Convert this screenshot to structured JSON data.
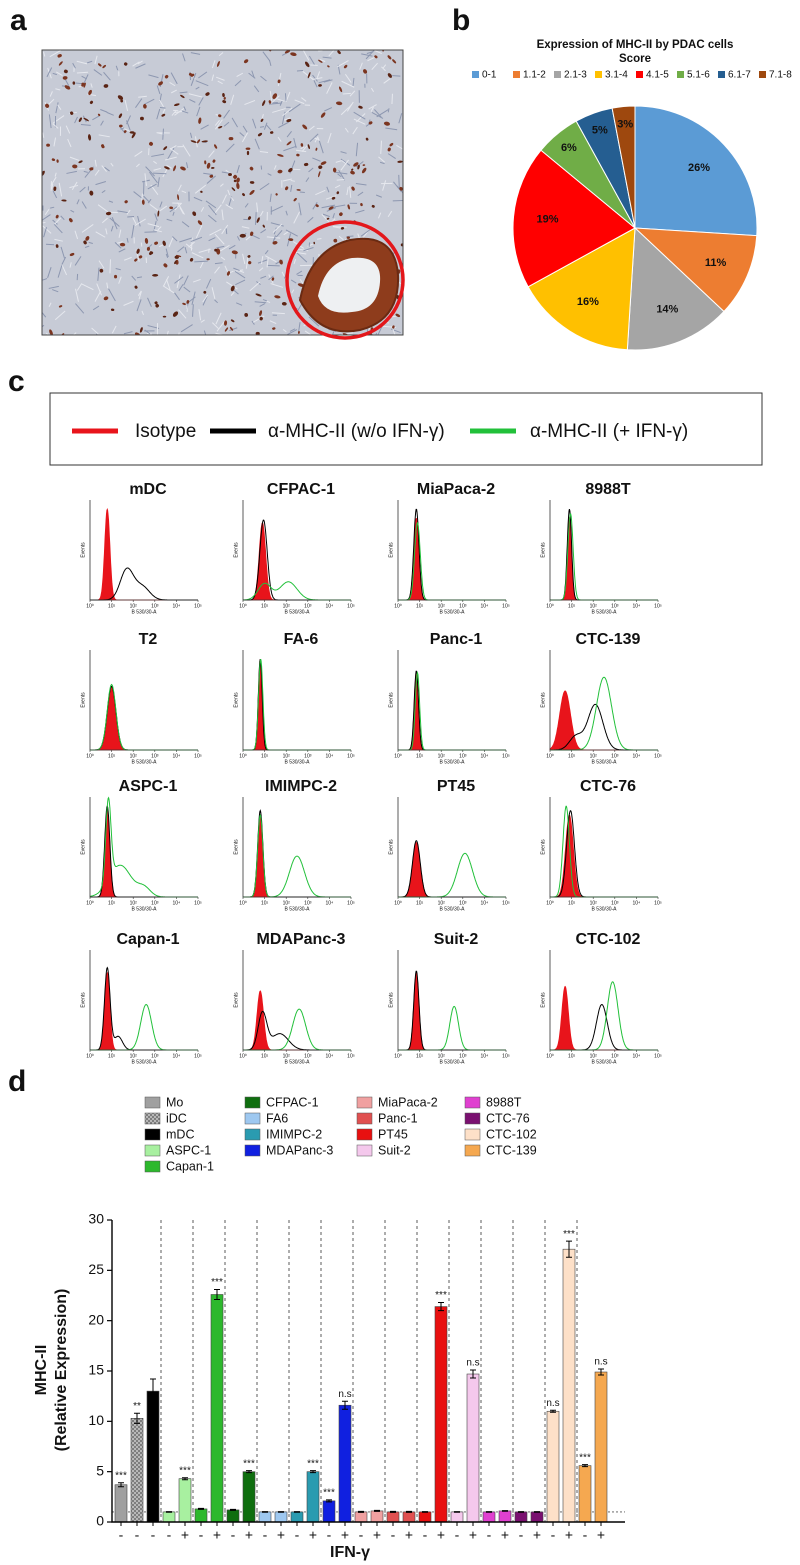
{
  "panel_labels": [
    "a",
    "b",
    "c",
    "d"
  ],
  "chart_data": [
    {
      "type": "pie",
      "title": "Expression of MHC-II by PDAC cells",
      "subtitle": "Score",
      "categories": [
        "0-1",
        "1.1-2",
        "2.1-3",
        "3.1-4",
        "4.1-5",
        "5.1-6",
        "6.1-7",
        "7.1-8"
      ],
      "values": [
        26,
        11,
        14,
        16,
        19,
        6,
        5,
        3
      ],
      "value_labels": [
        "26%",
        "11%",
        "14%",
        "16%",
        "19%",
        "6%",
        "5%",
        "3%"
      ],
      "colors": [
        "#5b9bd5",
        "#ed7d31",
        "#a5a5a5",
        "#ffc000",
        "#ff0000",
        "#70ad47",
        "#255e91",
        "#9e480e"
      ]
    },
    {
      "type": "density-grid",
      "legend": [
        {
          "name": "Isotype",
          "color": "#e8141b"
        },
        {
          "name": "α-MHC-II (w/o IFN-γ)",
          "color": "#000000"
        },
        {
          "name": "α-MHC-II (+ IFN-γ)",
          "color": "#22c03a"
        }
      ],
      "xlabel": "B 530/30-A",
      "ylabel": "Events",
      "xlim": [
        0,
        5
      ],
      "ylim": [
        0,
        1.1
      ],
      "xticks": [
        {
          "value": 0,
          "label": "10⁰"
        },
        {
          "value": 1,
          "label": "10¹"
        },
        {
          "value": 2,
          "label": "10²"
        },
        {
          "value": 3,
          "label": "10³"
        },
        {
          "value": 4,
          "label": "10⁴"
        },
        {
          "value": 5,
          "label": "10⁵"
        }
      ],
      "panels": [
        {
          "title": "mDC",
          "curves": [
            [
              [
                0.8,
                0.12,
                1.0
              ]
            ],
            [
              [
                1.7,
                0.3,
                0.33
              ],
              [
                2.4,
                0.35,
                0.15
              ]
            ],
            []
          ]
        },
        {
          "title": "CFPAC-1",
          "curves": [
            [
              [
                0.9,
                0.15,
                0.85
              ]
            ],
            [
              [
                0.95,
                0.17,
                0.88
              ]
            ],
            [
              [
                1.0,
                0.3,
                0.18
              ],
              [
                2.1,
                0.4,
                0.2
              ]
            ]
          ]
        },
        {
          "title": "MiaPaca-2",
          "curves": [
            [
              [
                0.85,
                0.12,
                0.9
              ]
            ],
            [
              [
                0.85,
                0.12,
                1.0
              ]
            ],
            [
              [
                0.9,
                0.13,
                0.85
              ]
            ]
          ]
        },
        {
          "title": "8988T",
          "curves": [
            [
              [
                0.9,
                0.1,
                0.9
              ]
            ],
            [
              [
                0.9,
                0.1,
                1.0
              ]
            ],
            [
              [
                0.95,
                0.12,
                0.95
              ]
            ]
          ]
        },
        {
          "title": "T2",
          "curves": [
            [
              [
                1.0,
                0.2,
                0.7
              ]
            ],
            [
              [
                1.0,
                0.2,
                0.7
              ]
            ],
            [
              [
                1.0,
                0.2,
                0.72
              ]
            ]
          ]
        },
        {
          "title": "FA-6",
          "curves": [
            [
              [
                0.8,
                0.09,
                1.0
              ]
            ],
            [
              [
                0.8,
                0.09,
                1.0
              ]
            ],
            [
              [
                0.82,
                0.1,
                1.0
              ]
            ]
          ]
        },
        {
          "title": "Panc-1",
          "curves": [
            [
              [
                0.85,
                0.1,
                0.85
              ]
            ],
            [
              [
                0.85,
                0.1,
                0.87
              ]
            ],
            [
              [
                0.9,
                0.1,
                0.85
              ]
            ]
          ]
        },
        {
          "title": "CTC-139",
          "curves": [
            [
              [
                0.7,
                0.25,
                0.65
              ]
            ],
            [
              [
                1.2,
                0.3,
                0.15
              ],
              [
                2.1,
                0.35,
                0.5
              ]
            ],
            [
              [
                2.5,
                0.35,
                0.8
              ]
            ]
          ]
        },
        {
          "title": "ASPC-1",
          "curves": [
            [
              [
                0.8,
                0.12,
                0.95
              ]
            ],
            [
              [
                0.8,
                0.12,
                1.0
              ]
            ],
            [
              [
                0.85,
                0.12,
                0.9
              ],
              [
                1.4,
                0.5,
                0.35
              ],
              [
                2.5,
                0.3,
                0.1
              ]
            ]
          ]
        },
        {
          "title": "IMIMPC-2",
          "curves": [
            [
              [
                0.8,
                0.12,
                0.9
              ]
            ],
            [
              [
                0.8,
                0.12,
                0.95
              ]
            ],
            [
              [
                0.8,
                0.12,
                0.9
              ],
              [
                2.5,
                0.35,
                0.45
              ]
            ]
          ]
        },
        {
          "title": "PT45",
          "curves": [
            [
              [
                0.85,
                0.18,
                0.6
              ]
            ],
            [
              [
                0.85,
                0.18,
                0.62
              ]
            ],
            [
              [
                3.1,
                0.35,
                0.48
              ]
            ]
          ]
        },
        {
          "title": "CTC-76",
          "curves": [
            [
              [
                0.9,
                0.18,
                0.9
              ]
            ],
            [
              [
                0.95,
                0.18,
                0.95
              ]
            ],
            [
              [
                0.75,
                0.15,
                1.0
              ]
            ]
          ]
        },
        {
          "title": "Capan-1",
          "curves": [
            [
              [
                0.8,
                0.12,
                0.85
              ]
            ],
            [
              [
                0.8,
                0.13,
                0.9
              ],
              [
                1.3,
                0.2,
                0.15
              ]
            ],
            [
              [
                2.6,
                0.25,
                0.5
              ]
            ]
          ]
        },
        {
          "title": "MDAPanc-3",
          "curves": [
            [
              [
                0.8,
                0.15,
                0.65
              ]
            ],
            [
              [
                0.9,
                0.2,
                0.4
              ],
              [
                1.7,
                0.4,
                0.18
              ]
            ],
            [
              [
                2.6,
                0.3,
                0.45
              ]
            ]
          ]
        },
        {
          "title": "Suit-2",
          "curves": [
            [
              [
                0.85,
                0.12,
                0.85
              ]
            ],
            [
              [
                0.85,
                0.12,
                0.87
              ]
            ],
            [
              [
                2.6,
                0.2,
                0.48
              ]
            ]
          ]
        },
        {
          "title": "CTC-102",
          "curves": [
            [
              [
                0.7,
                0.15,
                0.7
              ]
            ],
            [
              [
                2.4,
                0.25,
                0.5
              ]
            ],
            [
              [
                2.9,
                0.25,
                0.75
              ]
            ]
          ]
        }
      ]
    },
    {
      "type": "bar",
      "ylabel": [
        "MHC-II",
        "(Relative Expression)"
      ],
      "xlabel": "IFN-γ",
      "ylim": [
        0,
        30
      ],
      "yticks": [
        0,
        5,
        10,
        15,
        20,
        25,
        30
      ],
      "reference_line": 1,
      "series": [
        {
          "name": "Mo",
          "color": "#a0a0a0",
          "categories": [
            "-"
          ],
          "values": [
            3.7
          ],
          "errors": [
            0.2
          ],
          "significance": [
            "***"
          ]
        },
        {
          "name": "iDC",
          "color": "#9a9a9a",
          "pattern": "dots",
          "categories": [
            "-"
          ],
          "values": [
            10.3
          ],
          "errors": [
            0.5
          ],
          "significance": [
            "**"
          ]
        },
        {
          "name": "mDC",
          "color": "#000000",
          "categories": [
            "-"
          ],
          "values": [
            13.0
          ],
          "errors": [
            1.2
          ],
          "significance": [
            null
          ]
        },
        {
          "name": "ASPC-1",
          "color": "#a8f0a0",
          "categories": [
            "-",
            "+"
          ],
          "values": [
            1.0,
            4.3
          ],
          "errors": [
            0.03,
            0.1
          ],
          "significance": [
            null,
            "***"
          ]
        },
        {
          "name": "Capan-1",
          "color": "#2db82d",
          "categories": [
            "-",
            "+"
          ],
          "values": [
            1.3,
            22.6
          ],
          "errors": [
            0.05,
            0.5
          ],
          "significance": [
            null,
            "***"
          ]
        },
        {
          "name": "CFPAC-1",
          "color": "#0f6e0f",
          "categories": [
            "-",
            "+"
          ],
          "values": [
            1.2,
            5.0
          ],
          "errors": [
            0.05,
            0.1
          ],
          "significance": [
            null,
            "***"
          ]
        },
        {
          "name": "FA6",
          "color": "#9ec8f0",
          "categories": [
            "-",
            "+"
          ],
          "values": [
            1.0,
            1.0
          ],
          "errors": [
            0.03,
            0.03
          ],
          "significance": [
            null,
            null
          ]
        },
        {
          "name": "IMIMPC-2",
          "color": "#2a9bb0",
          "categories": [
            "-",
            "+"
          ],
          "values": [
            1.0,
            5.0
          ],
          "errors": [
            0.03,
            0.1
          ],
          "significance": [
            null,
            "***"
          ]
        },
        {
          "name": "MDAPanc-3",
          "color": "#1020e0",
          "categories": [
            "-",
            "+"
          ],
          "values": [
            2.1,
            11.6
          ],
          "errors": [
            0.1,
            0.4
          ],
          "significance": [
            "***",
            "n.s"
          ]
        },
        {
          "name": "MiaPaca-2",
          "color": "#f0a0a0",
          "categories": [
            "-",
            "+"
          ],
          "values": [
            1.0,
            1.1
          ],
          "errors": [
            0.05,
            0.05
          ],
          "significance": [
            null,
            null
          ]
        },
        {
          "name": "Panc-1",
          "color": "#e05050",
          "categories": [
            "-",
            "+"
          ],
          "values": [
            1.0,
            1.0
          ],
          "errors": [
            0.05,
            0.05
          ],
          "significance": [
            null,
            null
          ]
        },
        {
          "name": "PT45",
          "color": "#e81010",
          "categories": [
            "-",
            "+"
          ],
          "values": [
            1.0,
            21.4
          ],
          "errors": [
            0.03,
            0.4
          ],
          "significance": [
            null,
            "***"
          ]
        },
        {
          "name": "Suit-2",
          "color": "#f4c8ec",
          "categories": [
            "-",
            "+"
          ],
          "values": [
            1.0,
            14.7
          ],
          "errors": [
            0.03,
            0.4
          ],
          "significance": [
            null,
            "n.s"
          ]
        },
        {
          "name": "8988T",
          "color": "#e040d0",
          "categories": [
            "-",
            "+"
          ],
          "values": [
            1.0,
            1.1
          ],
          "errors": [
            0.03,
            0.03
          ],
          "significance": [
            null,
            null
          ]
        },
        {
          "name": "CTC-76",
          "color": "#7a1070",
          "categories": [
            "-",
            "+"
          ],
          "values": [
            1.0,
            1.0
          ],
          "errors": [
            0.03,
            0.03
          ],
          "significance": [
            null,
            null
          ]
        },
        {
          "name": "CTC-102",
          "color": "#fde0c8",
          "categories": [
            "-",
            "+"
          ],
          "values": [
            11.0,
            27.1
          ],
          "errors": [
            0.1,
            0.8
          ],
          "significance": [
            "n.s",
            "***"
          ]
        },
        {
          "name": "CTC-139",
          "color": "#f5a850",
          "categories": [
            "-",
            "+"
          ],
          "values": [
            5.6,
            14.9
          ],
          "errors": [
            0.1,
            0.3
          ],
          "significance": [
            "***",
            "n.s"
          ]
        }
      ]
    }
  ]
}
